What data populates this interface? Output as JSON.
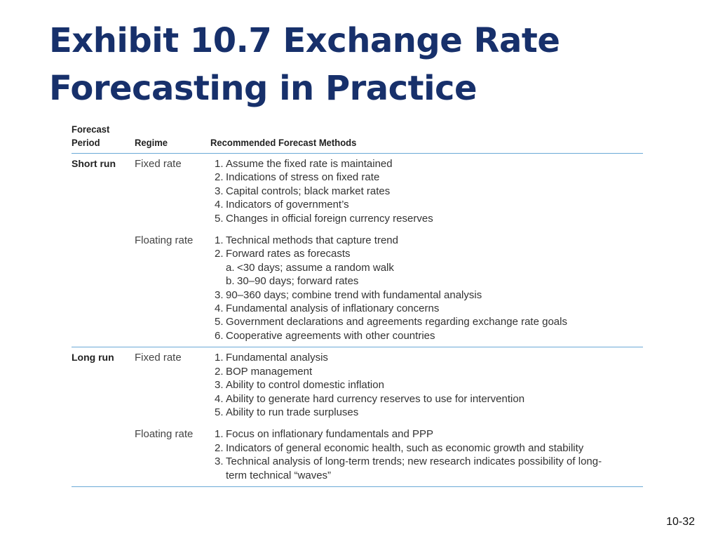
{
  "title": {
    "line1": "Exhibit 10.7  Exchange Rate",
    "line2": "Forecasting in Practice"
  },
  "table": {
    "headers": {
      "period_line1": "Forecast",
      "period_line2": "Period",
      "regime": "Regime",
      "methods": "Recommended Forecast Methods"
    },
    "groups": [
      {
        "period": "Short run",
        "blocks": [
          {
            "regime": "Fixed rate",
            "methods": [
              {
                "num": "1.",
                "text": "Assume the fixed rate is maintained"
              },
              {
                "num": "2.",
                "text": "Indications of stress on fixed rate"
              },
              {
                "num": "3.",
                "text": "Capital controls; black market rates"
              },
              {
                "num": "4.",
                "text": "Indicators of government’s"
              },
              {
                "num": "5.",
                "text": "Changes in official foreign currency reserves"
              }
            ]
          },
          {
            "regime": "Floating rate",
            "methods": [
              {
                "num": "1.",
                "text": "Technical methods that capture trend"
              },
              {
                "num": "2.",
                "text": "Forward rates as forecasts"
              },
              {
                "num": "a.",
                "text": "<30 days; assume a random walk",
                "sub": true
              },
              {
                "num": "b.",
                "text": "30–90 days; forward rates",
                "sub": true
              },
              {
                "num": "3.",
                "text": "90–360 days; combine trend with fundamental analysis"
              },
              {
                "num": "4.",
                "text": "Fundamental analysis of inflationary concerns"
              },
              {
                "num": "5.",
                "text": "Government declarations and agreements regarding exchange rate goals"
              },
              {
                "num": "6.",
                "text": "Cooperative agreements with other countries"
              }
            ]
          }
        ]
      },
      {
        "period": "Long run",
        "blocks": [
          {
            "regime": "Fixed rate",
            "methods": [
              {
                "num": "1.",
                "text": "Fundamental analysis"
              },
              {
                "num": "2.",
                "text": "BOP management"
              },
              {
                "num": "3.",
                "text": "Ability to control domestic inflation"
              },
              {
                "num": "4.",
                "text": "Ability to generate hard currency reserves to use for intervention"
              },
              {
                "num": "5.",
                "text": "Ability to run trade surpluses"
              }
            ]
          },
          {
            "regime": "Floating rate",
            "methods": [
              {
                "num": "1.",
                "text": "Focus on inflationary fundamentals and PPP"
              },
              {
                "num": "2.",
                "text": "Indicators of general economic health, such as economic growth and stability"
              },
              {
                "num": "3.",
                "text": "Technical analysis of long-term trends; new research indicates possibility of long-",
                "cont": "term technical “waves”"
              }
            ]
          }
        ]
      }
    ]
  },
  "page_number": "10-32"
}
